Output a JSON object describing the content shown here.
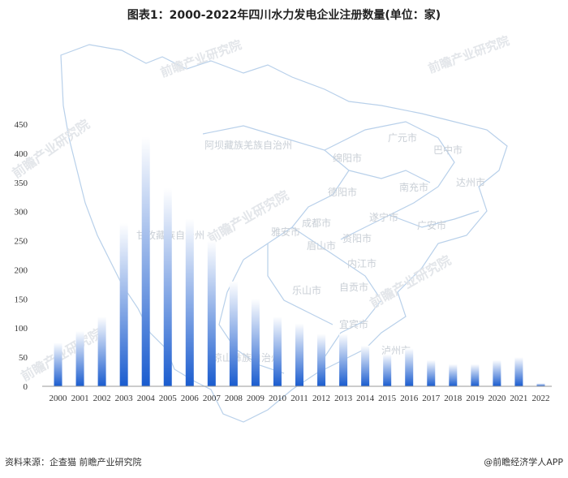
{
  "title": "图表1：2000-2022年四川水力发电企业注册数量(单位：家)",
  "footer": {
    "source": "资料来源：企查猫 前瞻产业研究院",
    "brand": "@前瞻经济学人APP"
  },
  "watermark": {
    "text": "前瞻产业研究院"
  },
  "map_labels": [
    "阿坝藏族羌族自治州",
    "广元市",
    "巴中市",
    "绵阳市",
    "达州市",
    "南充市",
    "德阳市",
    "成都市",
    "遂宁市",
    "广安市",
    "甘孜藏族自治州",
    "雅安市",
    "眉山市",
    "资阳市",
    "内江市",
    "乐山市",
    "自贡市",
    "宜宾市",
    "泸州市",
    "凉山彝族自治州"
  ],
  "colors": {
    "bar_top": "#ffffff",
    "bar_bottom": "#1a5ccf",
    "map_stroke": "#b8d0ea"
  },
  "chart_data": {
    "type": "bar",
    "title": "图表1：2000-2022年四川水力发电企业注册数量(单位：家)",
    "xlabel": "",
    "ylabel": "",
    "categories": [
      "2000",
      "2001",
      "2002",
      "2003",
      "2004",
      "2005",
      "2006",
      "2007",
      "2008",
      "2009",
      "2010",
      "2011",
      "2012",
      "2013",
      "2014",
      "2015",
      "2016",
      "2017",
      "2018",
      "2019",
      "2020",
      "2021",
      "2022"
    ],
    "values": [
      75,
      95,
      120,
      280,
      428,
      340,
      288,
      250,
      180,
      150,
      120,
      108,
      90,
      90,
      70,
      55,
      65,
      45,
      38,
      38,
      45,
      50,
      5
    ],
    "ylim": [
      0,
      450
    ],
    "yticks": [
      0,
      50,
      100,
      150,
      200,
      250,
      300,
      350,
      400,
      450
    ],
    "grid": false,
    "legend": "none"
  }
}
